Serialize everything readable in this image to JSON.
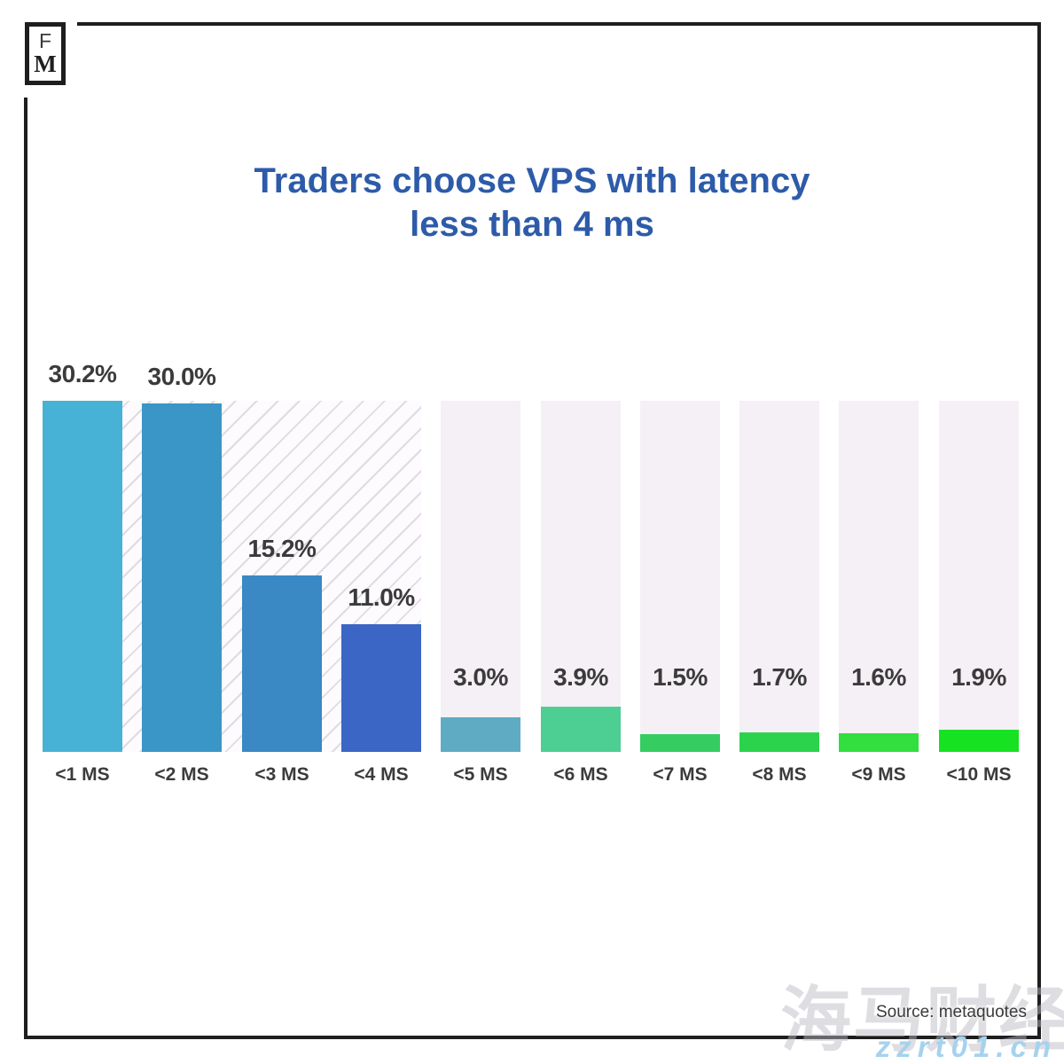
{
  "logo": {
    "top_letter": "F",
    "bottom_letter": "M"
  },
  "title": {
    "line1": "Traders choose VPS with latency",
    "line2": "less than 4 ms",
    "color": "#2d5ba9"
  },
  "chart_data": {
    "type": "bar",
    "title": "Traders choose VPS with latency less than 4 ms",
    "categories": [
      "<1 MS",
      "<2 MS",
      "<3 MS",
      "<4 MS",
      "<5 MS",
      "<6 MS",
      "<7 MS",
      "<8 MS",
      "<9 MS",
      "<10 MS"
    ],
    "values": [
      30.2,
      30.0,
      15.2,
      11.0,
      3.0,
      3.9,
      1.5,
      1.7,
      1.6,
      1.9
    ],
    "value_labels": [
      "30.2%",
      "30.0%",
      "15.2%",
      "11.0%",
      "3.0%",
      "3.9%",
      "1.5%",
      "1.7%",
      "1.6%",
      "1.9%"
    ],
    "bar_colors": [
      "#47b2d6",
      "#3a96c6",
      "#3a88c4",
      "#3b66c6",
      "#5fabc4",
      "#4dce93",
      "#35cd62",
      "#2bd34d",
      "#32df3f",
      "#17e222"
    ],
    "xlabel": "",
    "ylabel": "",
    "ylim": [
      0,
      30.2
    ],
    "grid": false,
    "legend": "none",
    "highlight": {
      "columns": 4,
      "style": "diagonal-hatch",
      "meaning": "latency region under 4 ms"
    },
    "column_bg_color": "#f5f0f5",
    "hatch_line_color": "#cdc5d1",
    "label_color": "#3b3b3b"
  },
  "source": {
    "label": "Source: metaquotes"
  },
  "watermark": {
    "cn_text": "海马财经",
    "site_text": "zzrt01.cn",
    "site_color": "#a5d2ee"
  }
}
